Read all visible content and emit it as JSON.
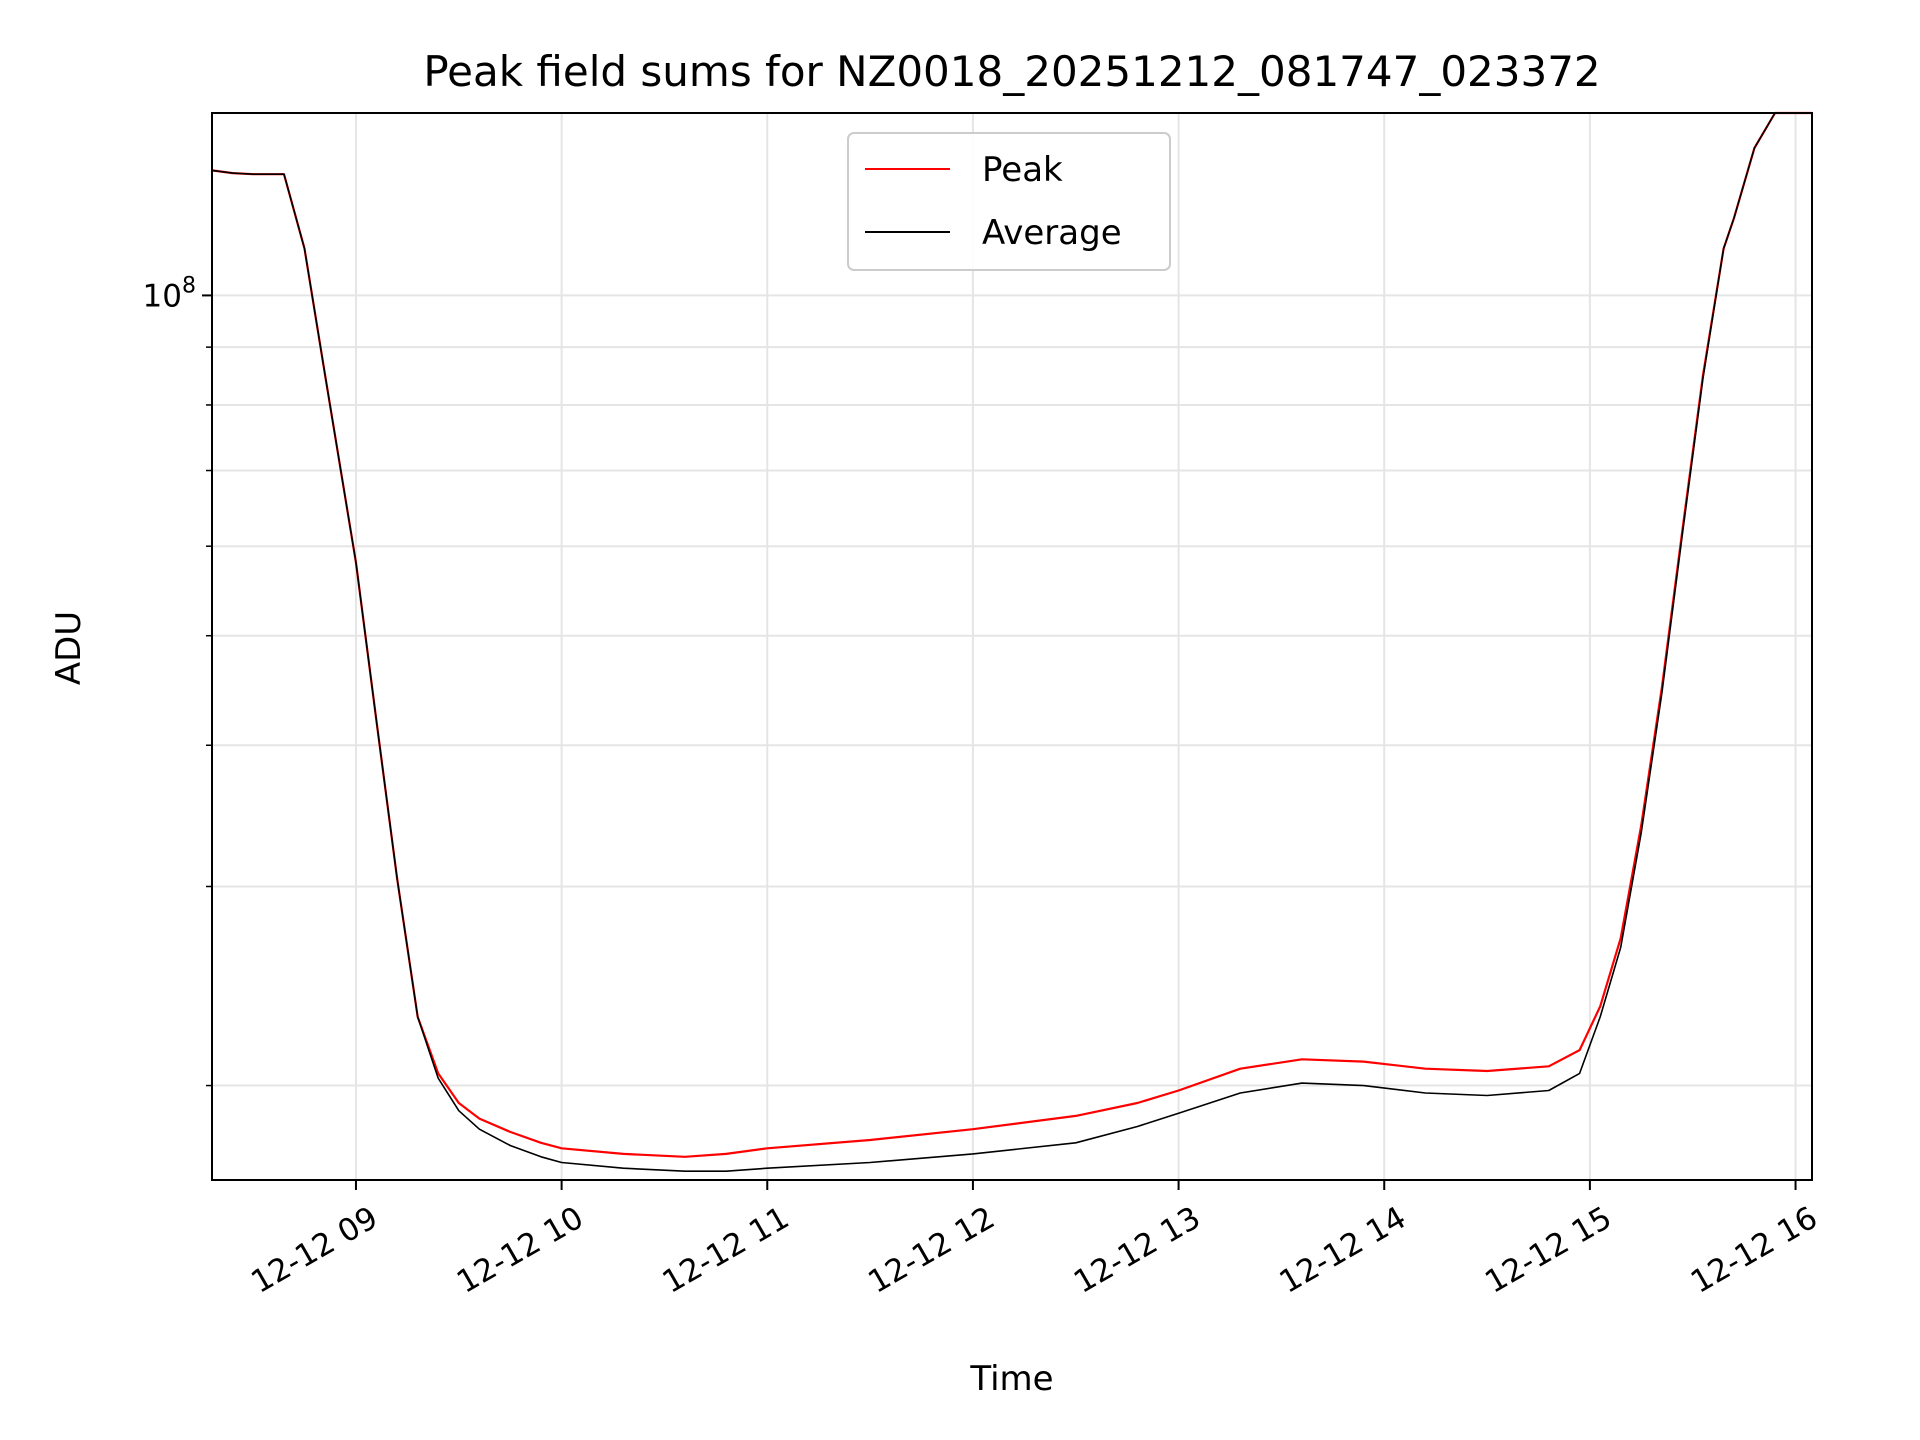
{
  "chart_data": {
    "type": "line",
    "title": "Peak field sums for NZ0018_20251212_081747_023372",
    "xlabel": "Time",
    "ylabel": "ADU",
    "yscale": "log",
    "ylim": [
      16500000,
      145000000
    ],
    "xlim": [
      8.3,
      16.08
    ],
    "grid": true,
    "legend": {
      "position": "upper center",
      "entries": [
        "Peak",
        "Average"
      ]
    },
    "x_ticks": [
      {
        "value": 9,
        "label": "12-12 09"
      },
      {
        "value": 10,
        "label": "12-12 10"
      },
      {
        "value": 11,
        "label": "12-12 11"
      },
      {
        "value": 12,
        "label": "12-12 12"
      },
      {
        "value": 13,
        "label": "12-12 13"
      },
      {
        "value": 14,
        "label": "12-12 14"
      },
      {
        "value": 15,
        "label": "12-12 15"
      },
      {
        "value": 16,
        "label": "12-12 16"
      }
    ],
    "y_ticks": [
      {
        "value": 100000000,
        "base": "10",
        "exp": "8"
      }
    ],
    "y_minor_ticks": [
      20000000,
      30000000,
      40000000,
      50000000,
      60000000,
      70000000,
      80000000,
      90000000
    ],
    "series": [
      {
        "name": "Peak",
        "color": "#ff0000",
        "x": [
          8.3,
          8.4,
          8.5,
          8.65,
          8.75,
          8.85,
          9.0,
          9.1,
          9.2,
          9.3,
          9.4,
          9.5,
          9.6,
          9.75,
          9.9,
          10.0,
          10.3,
          10.6,
          10.8,
          11.0,
          11.5,
          12.0,
          12.5,
          12.8,
          13.0,
          13.3,
          13.6,
          13.9,
          14.2,
          14.5,
          14.8,
          14.95,
          15.05,
          15.15,
          15.25,
          15.35,
          15.45,
          15.55,
          15.65,
          15.7,
          15.8,
          15.9,
          16.0,
          16.08
        ],
        "y": [
          129000000,
          128300000,
          128000000,
          128000000,
          110000000,
          85000000,
          58000000,
          42000000,
          30500000,
          23000000,
          20500000,
          19300000,
          18700000,
          18200000,
          17800000,
          17600000,
          17400000,
          17300000,
          17400000,
          17600000,
          17900000,
          18300000,
          18800000,
          19300000,
          19800000,
          20700000,
          21100000,
          21000000,
          20700000,
          20600000,
          20800000,
          21500000,
          23500000,
          27000000,
          34000000,
          45000000,
          62000000,
          85000000,
          110000000,
          117000000,
          135000000,
          145000000,
          145000000,
          145000000
        ]
      },
      {
        "name": "Average",
        "color": "#000000",
        "x": [
          8.3,
          8.4,
          8.5,
          8.65,
          8.75,
          8.85,
          9.0,
          9.1,
          9.2,
          9.3,
          9.4,
          9.5,
          9.6,
          9.75,
          9.9,
          10.0,
          10.3,
          10.6,
          10.8,
          11.0,
          11.5,
          12.0,
          12.5,
          12.8,
          13.0,
          13.3,
          13.6,
          13.9,
          14.2,
          14.5,
          14.8,
          14.95,
          15.05,
          15.15,
          15.25,
          15.35,
          15.45,
          15.55,
          15.65,
          15.7,
          15.8,
          15.9,
          16.0,
          16.08
        ],
        "y": [
          129000000,
          128300000,
          128000000,
          128000000,
          110000000,
          85000000,
          58000000,
          42000000,
          30500000,
          23000000,
          20300000,
          19000000,
          18300000,
          17700000,
          17300000,
          17100000,
          16900000,
          16800000,
          16800000,
          16900000,
          17100000,
          17400000,
          17800000,
          18400000,
          18900000,
          19700000,
          20100000,
          20000000,
          19700000,
          19600000,
          19800000,
          20500000,
          23000000,
          26500000,
          33500000,
          44500000,
          61500000,
          84500000,
          110000000,
          117000000,
          135000000,
          145000000,
          145000000,
          145000000
        ]
      }
    ]
  }
}
